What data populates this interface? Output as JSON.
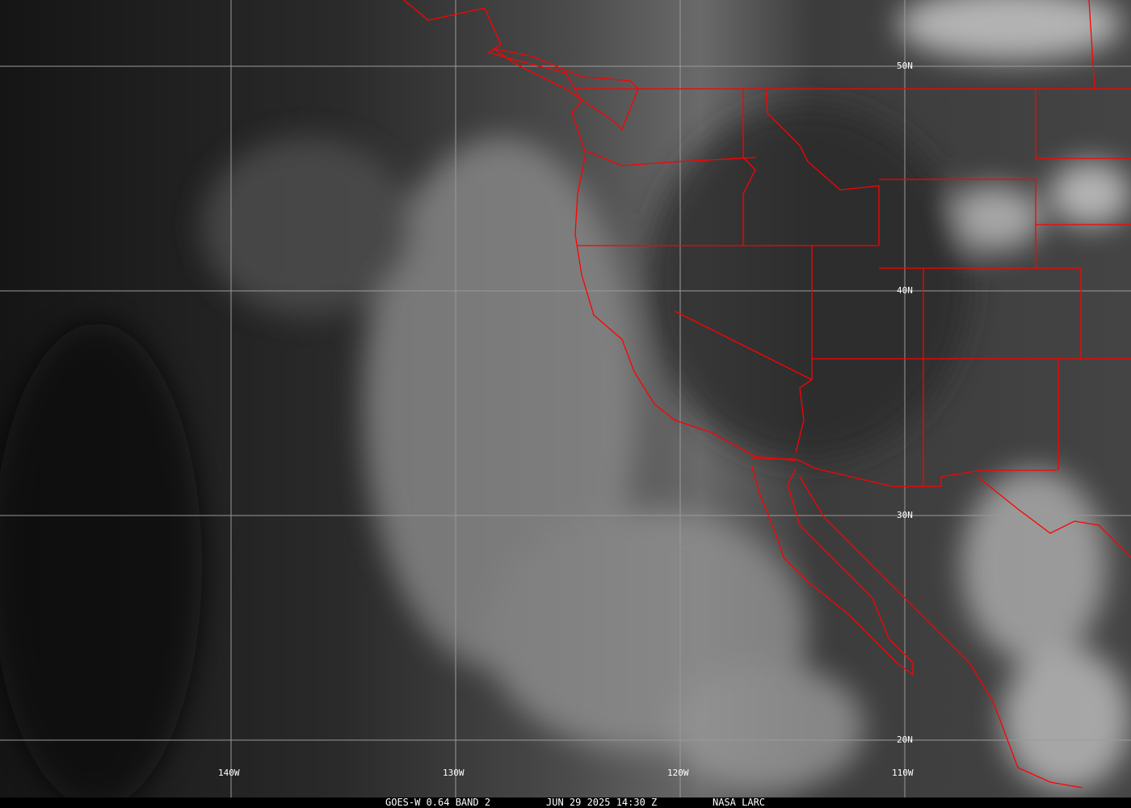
{
  "image": {
    "satellite": "GOES-W 0.64 BAND 2",
    "datetime": "JUN 29 2025 14:30 Z",
    "source": "NASA LARC"
  },
  "grid": {
    "lon_labels": [
      "140W",
      "130W",
      "120W",
      "110W"
    ],
    "lat_labels": [
      "50N",
      "40N",
      "30N",
      "20N"
    ]
  },
  "colors": {
    "borders": "#ff0000",
    "grid": "#9a9a9a",
    "caption_bg": "#000000"
  }
}
